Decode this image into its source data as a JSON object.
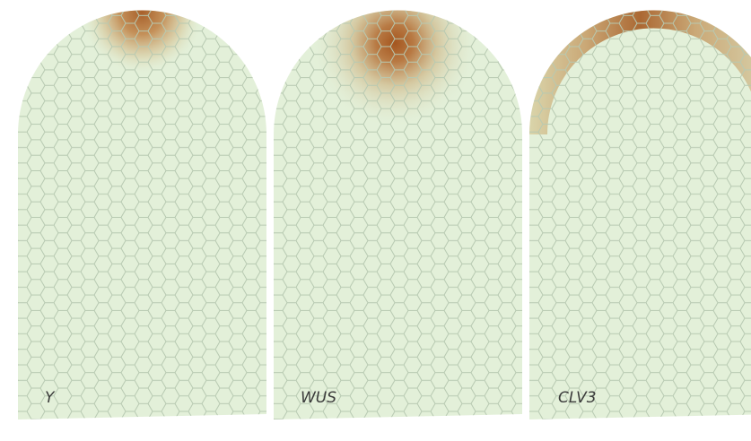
{
  "panels": [
    {
      "label": "Y"
    },
    {
      "label": "WUS"
    },
    {
      "label": "CLV3"
    }
  ]
}
